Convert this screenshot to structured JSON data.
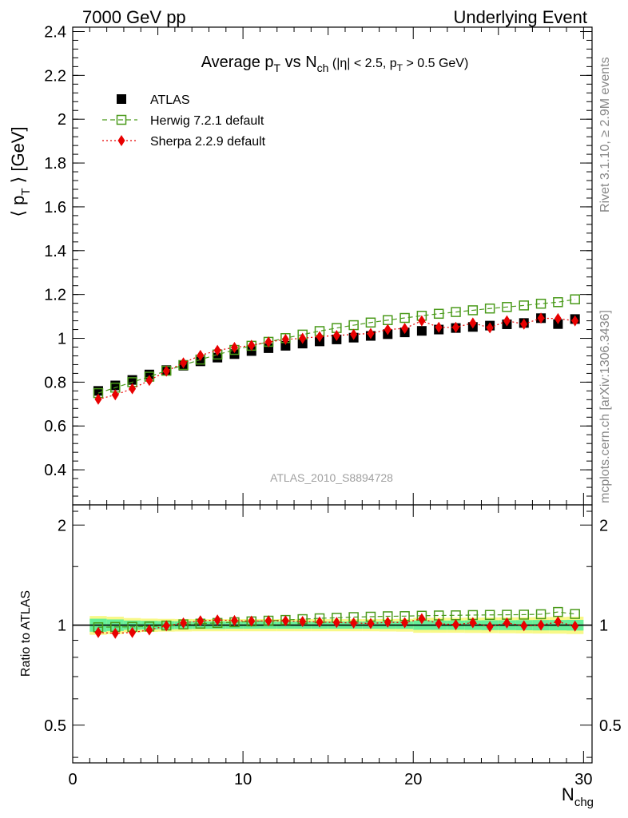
{
  "header": {
    "left": "7000 GeV pp",
    "right": "Underlying Event"
  },
  "side_labels": {
    "rivet": "Rivet 3.1.10, ≥ 2.9M events",
    "mcplots": "mcplots.cern.ch [arXiv:1306.3436]"
  },
  "chart_data": [
    {
      "type": "scatter",
      "title": "Average p_T vs N_ch (|η| < 2.5, p_T > 0.5 GeV)",
      "xlabel": "",
      "ylabel": "⟨ p_T ⟩ [GeV]",
      "xlim": [
        0,
        30.5
      ],
      "ylim": [
        0.24,
        2.42
      ],
      "yticks": [
        "0.4",
        "0.6",
        "0.8",
        "1",
        "1.2",
        "1.4",
        "1.6",
        "1.8",
        "2",
        "2.2",
        "2.4"
      ],
      "yticks_values": [
        0.4,
        0.6,
        0.8,
        1.0,
        1.2,
        1.4,
        1.6,
        1.8,
        2.0,
        2.2,
        2.4
      ],
      "watermark": "ATLAS_2010_S8894728",
      "legend_position": "top-left",
      "x": [
        1.5,
        2.5,
        3.5,
        4.5,
        5.5,
        6.5,
        7.5,
        8.5,
        9.5,
        10.5,
        11.5,
        12.5,
        13.5,
        14.5,
        15.5,
        16.5,
        17.5,
        18.5,
        19.5,
        20.5,
        21.5,
        22.5,
        23.5,
        24.5,
        25.5,
        26.5,
        27.5,
        28.5,
        29.5
      ],
      "series": [
        {
          "name": "ATLAS",
          "color": "#000000",
          "marker": "filled-square",
          "values": [
            0.76,
            0.785,
            0.81,
            0.835,
            0.855,
            0.875,
            0.895,
            0.912,
            0.928,
            0.942,
            0.955,
            0.966,
            0.976,
            0.986,
            0.995,
            1.003,
            1.011,
            1.019,
            1.027,
            1.034,
            1.04,
            1.047,
            1.052,
            1.058,
            1.064,
            1.07,
            1.092,
            1.065,
            1.088
          ]
        },
        {
          "name": "Herwig 7.2.1 default",
          "color": "#4a9a1a",
          "marker": "open-square",
          "line": "dashed",
          "values": [
            0.75,
            0.775,
            0.8,
            0.825,
            0.852,
            0.878,
            0.903,
            0.926,
            0.947,
            0.966,
            0.984,
            1.001,
            1.017,
            1.033,
            1.047,
            1.06,
            1.072,
            1.083,
            1.093,
            1.103,
            1.112,
            1.12,
            1.128,
            1.136,
            1.143,
            1.15,
            1.158,
            1.165,
            1.178
          ]
        },
        {
          "name": "Sherpa 2.2.9 default",
          "color": "#e80000",
          "marker": "filled-diamond",
          "line": "dotted",
          "values": [
            0.722,
            0.742,
            0.77,
            0.808,
            0.85,
            0.888,
            0.922,
            0.945,
            0.958,
            0.968,
            0.983,
            0.995,
            1.0,
            1.008,
            1.013,
            1.018,
            1.022,
            1.04,
            1.045,
            1.08,
            1.05,
            1.05,
            1.07,
            1.048,
            1.08,
            1.065,
            1.092,
            1.09,
            1.08
          ]
        }
      ]
    },
    {
      "type": "scatter",
      "xlabel": "N_chg",
      "ylabel": "Ratio to ATLAS",
      "xlim": [
        0,
        30.5
      ],
      "xticks": [
        "0",
        "10",
        "20",
        "30"
      ],
      "xticks_values": [
        0,
        10,
        20,
        30
      ],
      "yscale": "log",
      "ylim": [
        0.385,
        2.3
      ],
      "yticks": [
        "0.5",
        "1",
        "2"
      ],
      "yticks_values": [
        0.5,
        1,
        2
      ],
      "reference_band": {
        "x_edges": [
          1,
          2,
          3,
          4,
          5,
          6,
          7,
          8,
          9,
          10,
          11,
          12,
          13,
          14,
          15,
          16,
          17,
          18,
          19,
          20,
          21,
          22,
          23,
          24,
          25,
          26,
          27,
          28,
          29,
          30
        ],
        "inner_halfwidth": [
          0.045,
          0.04,
          0.032,
          0.03,
          0.028,
          0.027,
          0.026,
          0.026,
          0.025,
          0.025,
          0.025,
          0.025,
          0.025,
          0.025,
          0.025,
          0.025,
          0.025,
          0.026,
          0.026,
          0.032,
          0.032,
          0.032,
          0.033,
          0.034,
          0.034,
          0.035,
          0.036,
          0.036,
          0.037
        ],
        "outer_halfwidth": [
          0.065,
          0.06,
          0.05,
          0.046,
          0.044,
          0.043,
          0.042,
          0.042,
          0.042,
          0.042,
          0.042,
          0.042,
          0.042,
          0.042,
          0.042,
          0.042,
          0.042,
          0.043,
          0.044,
          0.052,
          0.052,
          0.052,
          0.053,
          0.054,
          0.055,
          0.056,
          0.057,
          0.058,
          0.06
        ],
        "inner_color": "#66ee99",
        "outer_color": "#f8f888"
      },
      "x": [
        1.5,
        2.5,
        3.5,
        4.5,
        5.5,
        6.5,
        7.5,
        8.5,
        9.5,
        10.5,
        11.5,
        12.5,
        13.5,
        14.5,
        15.5,
        16.5,
        17.5,
        18.5,
        19.5,
        20.5,
        21.5,
        22.5,
        23.5,
        24.5,
        25.5,
        26.5,
        27.5,
        28.5,
        29.5
      ],
      "series": [
        {
          "name": "Herwig 7.2.1 default",
          "color": "#4a9a1a",
          "marker": "open-square",
          "line": "dashed",
          "values": [
            0.985,
            0.987,
            0.988,
            0.99,
            0.997,
            1.005,
            1.01,
            1.015,
            1.02,
            1.026,
            1.031,
            1.036,
            1.042,
            1.048,
            1.052,
            1.057,
            1.06,
            1.063,
            1.064,
            1.067,
            1.069,
            1.07,
            1.072,
            1.073,
            1.074,
            1.075,
            1.078,
            1.095,
            1.08
          ]
        },
        {
          "name": "Sherpa 2.2.9 default",
          "color": "#e80000",
          "marker": "filled-diamond",
          "line": "dotted",
          "values": [
            0.95,
            0.945,
            0.95,
            0.967,
            0.995,
            1.015,
            1.03,
            1.036,
            1.032,
            1.028,
            1.03,
            1.03,
            1.025,
            1.022,
            1.018,
            1.015,
            1.011,
            1.02,
            1.017,
            1.045,
            1.01,
            1.003,
            1.017,
            0.99,
            1.015,
            0.995,
            1.0,
            1.023,
            0.993
          ]
        }
      ]
    }
  ]
}
